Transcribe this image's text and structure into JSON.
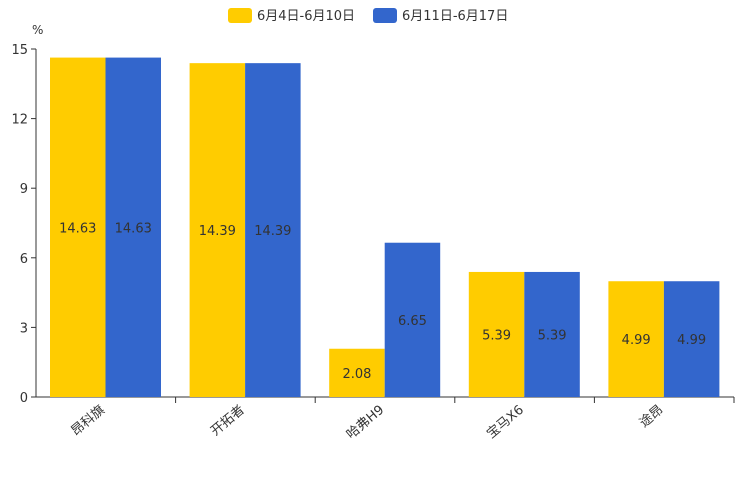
{
  "chart_data": {
    "type": "bar",
    "title": "",
    "ylabel": "%",
    "xlabel": "",
    "ylim": [
      0,
      15
    ],
    "yticks": [
      0,
      3,
      6,
      9,
      12,
      15
    ],
    "grid": false,
    "legend_position": "top-center",
    "categories": [
      "昂科旗",
      "开拓者",
      "哈弗H9",
      "宝马X6",
      "途昂"
    ],
    "series": [
      {
        "name": "6月4日-6月10日",
        "color": "#FFCC00",
        "values": [
          14.63,
          14.39,
          2.08,
          5.39,
          4.99
        ],
        "labels": [
          "14.63",
          "14.39",
          "2.08",
          "5.39",
          "4.99"
        ]
      },
      {
        "name": "6月11日-6月17日",
        "color": "#3366CC",
        "values": [
          14.63,
          14.39,
          6.65,
          5.39,
          4.99
        ],
        "labels": [
          "14.63",
          "14.39",
          "6.65",
          "5.39",
          "4.99"
        ]
      }
    ]
  }
}
